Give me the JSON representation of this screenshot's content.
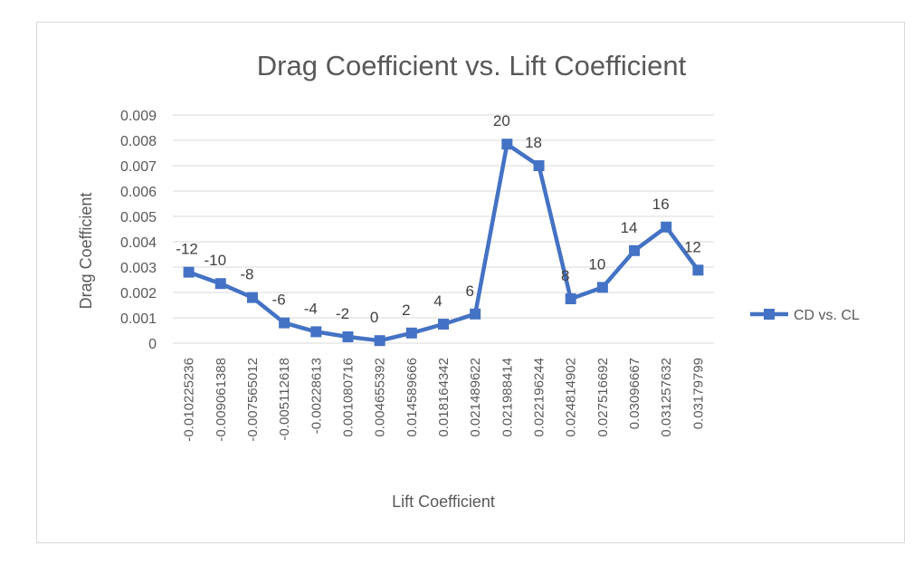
{
  "chart_data": {
    "type": "line",
    "title": "Drag Coefficient vs. Lift Coefficient",
    "xlabel": "Lift Coefficient",
    "ylabel": "Drag Coefficient",
    "ylim": [
      0,
      0.009
    ],
    "yticks": [
      "0",
      "0.001",
      "0.002",
      "0.003",
      "0.004",
      "0.005",
      "0.006",
      "0.007",
      "0.008",
      "0.009"
    ],
    "grid": true,
    "legend_position": "right",
    "color": "#4472c4",
    "categories": [
      "-0.010225236",
      "-0.009061388",
      "-0.007565012",
      "-0.005112618",
      "-0.00228613",
      "0.001080716",
      "0.004655392",
      "0.014589666",
      "0.018164342",
      "0.021489622",
      "0.021988414",
      "0.022196244",
      "0.024814902",
      "0.027516692",
      "0.03096667",
      "0.031257632",
      "0.03179799"
    ],
    "series": [
      {
        "name": "CD vs. CL",
        "values": [
          0.0028,
          0.00235,
          0.0018,
          0.0008,
          0.00045,
          0.00025,
          0.0001,
          0.0004,
          0.00075,
          0.00115,
          0.00785,
          0.007,
          0.00175,
          0.0022,
          0.00365,
          0.00458,
          0.00288
        ],
        "data_labels": [
          "-12",
          "-10",
          "-8",
          "-6",
          "-4",
          "-2",
          "0",
          "2",
          "4",
          "6",
          "20",
          "18",
          "8",
          "10",
          "14",
          "16",
          "12"
        ]
      }
    ]
  }
}
